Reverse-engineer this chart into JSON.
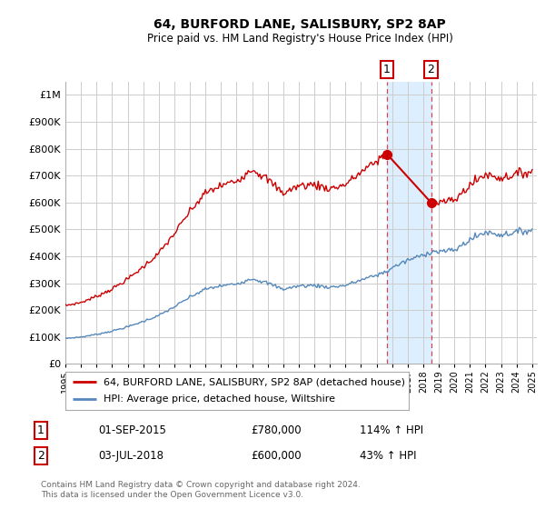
{
  "title": "64, BURFORD LANE, SALISBURY, SP2 8AP",
  "subtitle": "Price paid vs. HM Land Registry's House Price Index (HPI)",
  "property_label": "64, BURFORD LANE, SALISBURY, SP2 8AP (detached house)",
  "hpi_label": "HPI: Average price, detached house, Wiltshire",
  "property_color": "#cc0000",
  "hpi_color": "#5588bb",
  "sale1_date": "01-SEP-2015",
  "sale1_price": 780000,
  "sale1_label": "114% ↑ HPI",
  "sale2_date": "03-JUL-2018",
  "sale2_price": 600000,
  "sale2_label": "43% ↑ HPI",
  "footer": "Contains HM Land Registry data © Crown copyright and database right 2024.\nThis data is licensed under the Open Government Licence v3.0.",
  "ylim": [
    0,
    1050000
  ],
  "background_color": "#ffffff",
  "grid_color": "#cccccc",
  "span_color": "#ddeeff"
}
